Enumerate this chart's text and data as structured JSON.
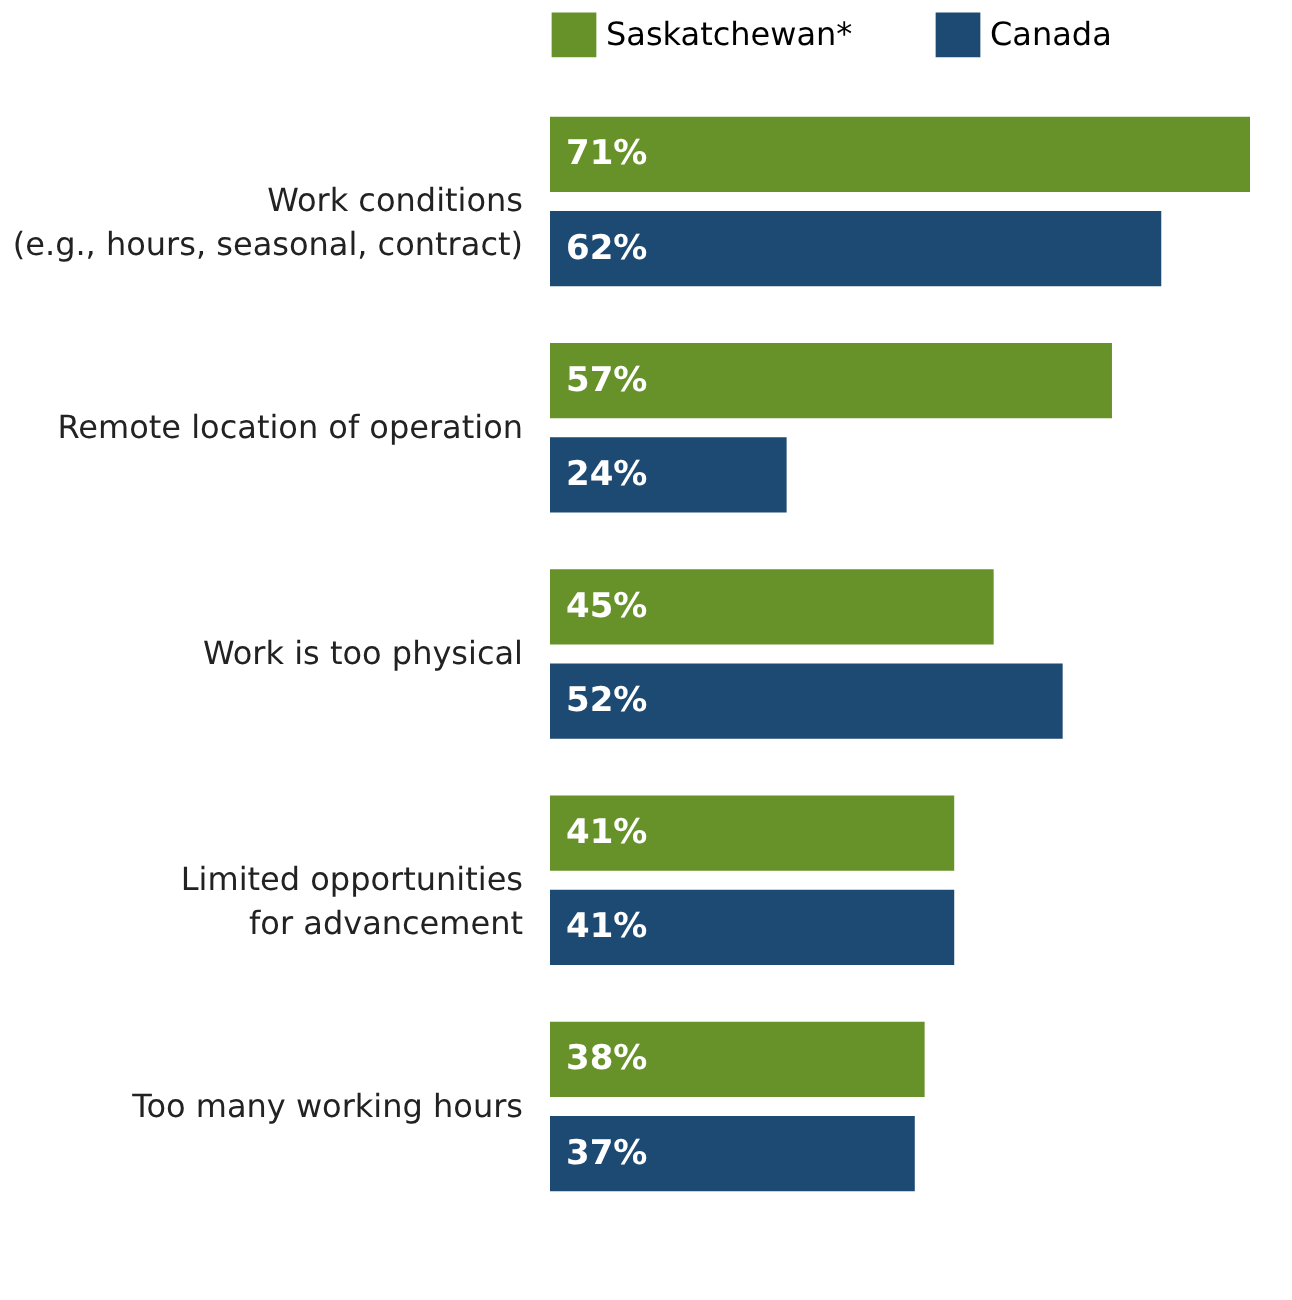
{
  "chart_data": {
    "type": "bar",
    "orientation": "horizontal",
    "categories": [
      "Work conditions\n(e.g., hours, seasonal, contract)",
      "Remote location of operation",
      "Work is too physical",
      "Limited opportunities\nfor advancement",
      "Too many working hours"
    ],
    "series": [
      {
        "name": "Saskatchewan*",
        "color": "#67922a",
        "values": [
          71,
          57,
          45,
          41,
          38
        ],
        "value_labels": [
          "71%",
          "57%",
          "45%",
          "41%",
          "38%"
        ]
      },
      {
        "name": "Canada",
        "color": "#1d4a73",
        "values": [
          62,
          24,
          52,
          41,
          37
        ],
        "value_labels": [
          "62%",
          "24%",
          "52%",
          "41%",
          "37%"
        ]
      }
    ],
    "legend": "top",
    "grid": false
  }
}
